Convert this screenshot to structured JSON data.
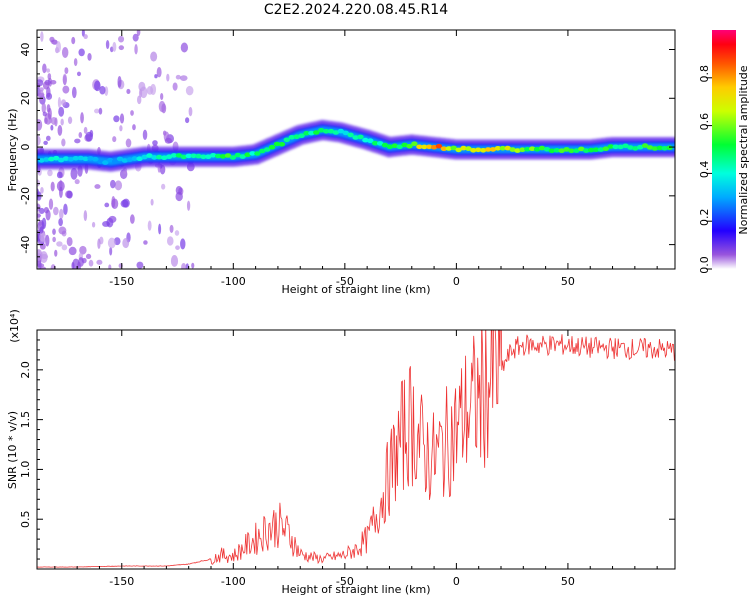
{
  "title": "C2E2.2024.220.08.45.R14",
  "chart_data": [
    {
      "type": "heatmap",
      "title": "C2E2.2024.220.08.45.R14",
      "xlabel": "Height of straight line (km)",
      "ylabel": "Frequency (Hz)",
      "xlim": [
        -188,
        98
      ],
      "ylim": [
        -50,
        48
      ],
      "x_ticks": [
        -150,
        -100,
        -50,
        0,
        50
      ],
      "y_ticks": [
        -40,
        -20,
        0,
        20,
        40
      ],
      "colorbar": {
        "label": "Normalized spectral amplitude",
        "range": [
          0.0,
          1.0
        ],
        "ticks": [
          "0.0",
          "0.2",
          "0.4",
          "0.6",
          "0.8"
        ]
      },
      "ridge": [
        {
          "x": -185,
          "y": -5,
          "amp": 0.4
        },
        {
          "x": -175,
          "y": -5,
          "amp": 0.35
        },
        {
          "x": -165,
          "y": -5,
          "amp": 0.35
        },
        {
          "x": -155,
          "y": -6,
          "amp": 0.3
        },
        {
          "x": -140,
          "y": -4,
          "amp": 0.4
        },
        {
          "x": -125,
          "y": -4,
          "amp": 0.45
        },
        {
          "x": -110,
          "y": -4,
          "amp": 0.45
        },
        {
          "x": -100,
          "y": -4,
          "amp": 0.55
        },
        {
          "x": -90,
          "y": -3,
          "amp": 0.45
        },
        {
          "x": -80,
          "y": 1,
          "amp": 0.5
        },
        {
          "x": -70,
          "y": 5,
          "amp": 0.45
        },
        {
          "x": -60,
          "y": 7,
          "amp": 0.5
        },
        {
          "x": -52,
          "y": 6,
          "amp": 0.4
        },
        {
          "x": -40,
          "y": 3,
          "amp": 0.45
        },
        {
          "x": -30,
          "y": 0,
          "amp": 0.5
        },
        {
          "x": -20,
          "y": 1,
          "amp": 0.55
        },
        {
          "x": -10,
          "y": 0,
          "amp": 0.95
        },
        {
          "x": 0,
          "y": -1,
          "amp": 0.6
        },
        {
          "x": 10,
          "y": -1,
          "amp": 0.75
        },
        {
          "x": 20,
          "y": -1,
          "amp": 0.7
        },
        {
          "x": 30,
          "y": -1,
          "amp": 0.6
        },
        {
          "x": 40,
          "y": -1,
          "amp": 0.5
        },
        {
          "x": 50,
          "y": -1,
          "amp": 0.55
        },
        {
          "x": 60,
          "y": -1,
          "amp": 0.55
        },
        {
          "x": 70,
          "y": 0,
          "amp": 0.5
        },
        {
          "x": 80,
          "y": 0,
          "amp": 0.5
        },
        {
          "x": 95,
          "y": 0,
          "amp": 0.55
        }
      ]
    },
    {
      "type": "line",
      "xlabel": "Height of straight line (km)",
      "ylabel": "SNR (10 * v/v)",
      "y_multiplier": "(x10⁴)",
      "xlim": [
        -188,
        98
      ],
      "ylim": [
        0,
        2.4
      ],
      "x_ticks": [
        -150,
        -100,
        -50,
        0,
        50
      ],
      "y_ticks": [
        "0.5",
        "1.0",
        "1.5",
        "2.0"
      ],
      "series": [
        {
          "color": "#ee3333",
          "x": [
            -188,
            -170,
            -150,
            -130,
            -120,
            -110,
            -105,
            -100,
            -95,
            -90,
            -85,
            -80,
            -75,
            -70,
            -65,
            -60,
            -55,
            -50,
            -45,
            -40,
            -35,
            -30,
            -25,
            -20,
            -15,
            -10,
            -5,
            0,
            5,
            10,
            15,
            20,
            25,
            30,
            40,
            50,
            60,
            70,
            80,
            90,
            98
          ],
          "y": [
            0.02,
            0.02,
            0.03,
            0.03,
            0.05,
            0.1,
            0.14,
            0.13,
            0.22,
            0.3,
            0.4,
            0.45,
            0.35,
            0.15,
            0.12,
            0.1,
            0.12,
            0.14,
            0.2,
            0.3,
            0.6,
            0.95,
            1.3,
            1.5,
            1.2,
            1.1,
            1.25,
            1.4,
            1.6,
            1.7,
            1.9,
            2.0,
            2.2,
            2.25,
            2.25,
            2.25,
            2.22,
            2.22,
            2.21,
            2.21,
            2.19
          ]
        }
      ]
    }
  ]
}
